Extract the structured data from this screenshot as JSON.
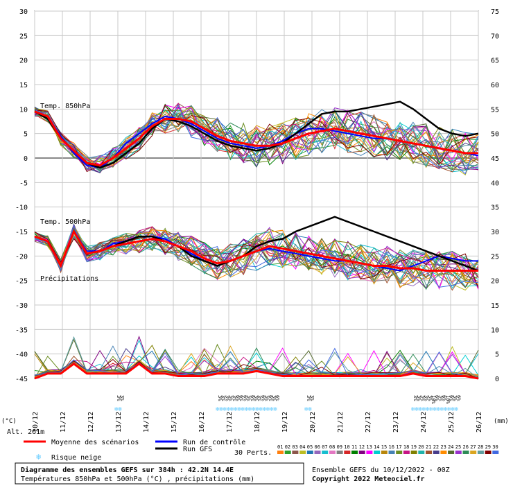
{
  "chart_data": {
    "type": "line",
    "title": "Diagramme des ensembles GEFS sur 384h : 42.2N 14.4E",
    "subtitle": "Températures 850hPa et 500hPa (°C) , précipitations (mm)",
    "source": "Ensemble GEFS du 10/12/2022 - 00Z",
    "copyright": "Copyright 2022 Meteociel.fr",
    "left_unit": "(°C)",
    "right_unit": "(mm)",
    "alt_label": "Alt. 261m",
    "labels": {
      "t850": "Temp. 850hPa",
      "t500": "Temp. 500hPa",
      "precip": "Précipitations"
    },
    "x_dates": [
      "11/12",
      "12/12",
      "13/12",
      "14/12",
      "15/12",
      "16/12",
      "17/12",
      "18/12",
      "19/12",
      "20/12",
      "21/12",
      "22/12",
      "23/12",
      "24/12",
      "25/12",
      "26/12"
    ],
    "x_dates_first": "10/12",
    "y_left": {
      "min": -45,
      "max": 30,
      "ticks": [
        30,
        25,
        20,
        15,
        10,
        5,
        0,
        -5,
        -10,
        -15,
        -20,
        -25,
        -30,
        -35,
        -40,
        -45
      ]
    },
    "y_right": {
      "ticks": [
        75,
        70,
        65,
        60,
        55,
        50,
        45,
        40,
        35,
        30,
        25,
        20,
        15,
        10,
        5,
        0
      ]
    },
    "legend": {
      "mean": "Moyenne des scénarios",
      "control": "Run de contrôle",
      "gfs": "Run GFS",
      "snow": "Risque neige",
      "perts": "30 Perts.",
      "pert_labels": [
        "01",
        "02",
        "03",
        "04",
        "05",
        "06",
        "07",
        "08",
        "09",
        "10",
        "11",
        "12",
        "13",
        "14",
        "15",
        "16",
        "17",
        "18",
        "19",
        "20",
        "21",
        "22",
        "23",
        "24",
        "25",
        "26",
        "27",
        "28",
        "29",
        "30"
      ]
    },
    "pert_colors": [
      "#ff7f0e",
      "#2ca02c",
      "#8c564b",
      "#bcbd22",
      "#1f77b4",
      "#9467bd",
      "#17becf",
      "#e377c2",
      "#7f7f7f",
      "#d62728",
      "#008000",
      "#800080",
      "#ff00ff",
      "#00ced1",
      "#b8860b",
      "#4682b4",
      "#6b8e23",
      "#c71585",
      "#808000",
      "#20b2aa",
      "#a0522d",
      "#483d8b",
      "#ff8c00",
      "#556b2f",
      "#9932cc",
      "#2e8b57",
      "#daa520",
      "#5f9ea0",
      "#800000",
      "#4169e1"
    ],
    "colors": {
      "mean": "#ff0000",
      "control": "#0000ff",
      "gfs": "#000000",
      "snow": "#66ccff"
    },
    "t850_mean": [
      9.5,
      8.5,
      4,
      1.5,
      -1,
      -1.5,
      0,
      2,
      4,
      6.5,
      8,
      8,
      7.5,
      6,
      4.5,
      3.5,
      3,
      2.5,
      2.5,
      3,
      4,
      5,
      5.5,
      6,
      5.5,
      5,
      4.5,
      4,
      3.5,
      3,
      2.5,
      2,
      1.5,
      1,
      1
    ],
    "t850_gfs": [
      9.5,
      8,
      4,
      1.5,
      -1,
      -2,
      -1,
      1,
      3,
      6,
      8,
      7.5,
      6.5,
      5,
      3.5,
      2.5,
      2,
      1.5,
      2,
      3,
      5,
      7,
      9,
      9.5,
      9.5,
      10,
      10.5,
      11,
      11.5,
      10,
      8,
      6,
      5,
      4.5,
      5
    ],
    "t850_control": [
      9.5,
      8.5,
      4.5,
      1,
      -1.5,
      -2,
      0,
      3,
      5,
      7,
      8.5,
      8,
      7,
      5.5,
      4,
      3,
      2.5,
      2,
      2.5,
      3.5,
      5,
      6,
      6,
      5.5,
      5,
      4.5,
      4,
      4,
      3.5,
      3,
      2.5,
      2,
      1.5,
      1,
      0.5
    ],
    "t500_mean": [
      -16,
      -17,
      -22,
      -15,
      -19.5,
      -19,
      -18,
      -17.5,
      -17,
      -16.5,
      -17,
      -18,
      -19,
      -20.5,
      -21.5,
      -21,
      -20,
      -19,
      -18,
      -18.5,
      -19,
      -19.5,
      -20,
      -20.5,
      -21,
      -21.5,
      -22,
      -22,
      -22.5,
      -22.5,
      -23,
      -23,
      -23,
      -23,
      -23
    ],
    "t500_gfs": [
      -16,
      -17,
      -22,
      -15,
      -19.5,
      -19,
      -18,
      -17,
      -16,
      -16,
      -17,
      -18,
      -20,
      -21,
      -22,
      -21,
      -20,
      -18,
      -17,
      -16.5,
      -15,
      -14,
      -13,
      -12,
      -13,
      -14,
      -15,
      -16,
      -17,
      -18,
      -19,
      -20,
      -21,
      -22,
      -23
    ],
    "t500_control": [
      -16,
      -17,
      -22,
      -15,
      -19,
      -19,
      -17.5,
      -17,
      -16,
      -16,
      -16.5,
      -18,
      -19.5,
      -21,
      -22,
      -21,
      -20,
      -19,
      -18.5,
      -19,
      -19.5,
      -20,
      -20.5,
      -21,
      -21,
      -21.5,
      -22,
      -22.5,
      -23,
      -22,
      -21,
      -20,
      -20.5,
      -21,
      -21
    ],
    "precip_mean_mm": [
      0,
      1,
      1,
      3,
      1,
      1,
      1,
      1,
      3,
      1,
      1,
      0.5,
      0.5,
      0.5,
      1,
      1,
      1,
      1.5,
      1,
      0.5,
      0.5,
      0.5,
      0.5,
      0.5,
      0.5,
      0.5,
      0.5,
      0.5,
      0.5,
      1,
      0.5,
      0.5,
      0.5,
      0.5,
      0
    ],
    "snow_risk": [
      {
        "date_index": 2.9,
        "values": [
          "3%",
          "3%"
        ]
      },
      {
        "date_index": 6.55,
        "values": [
          "3%",
          "3%",
          "3%",
          "3%",
          "3%",
          "6%",
          "6%",
          "6%",
          "3%",
          "6%",
          "3%",
          "3%",
          "6%",
          "3%",
          "6%",
          "3%",
          "6%"
        ]
      },
      {
        "date_index": 9.75,
        "values": [
          "3%",
          "3%"
        ]
      },
      {
        "date_index": 13.6,
        "values": [
          "3%",
          "3%",
          "3%",
          "3%",
          "3%",
          "10%",
          "6%",
          "3%",
          "6%",
          "10%",
          "6%",
          "3%",
          "6%"
        ]
      }
    ]
  }
}
